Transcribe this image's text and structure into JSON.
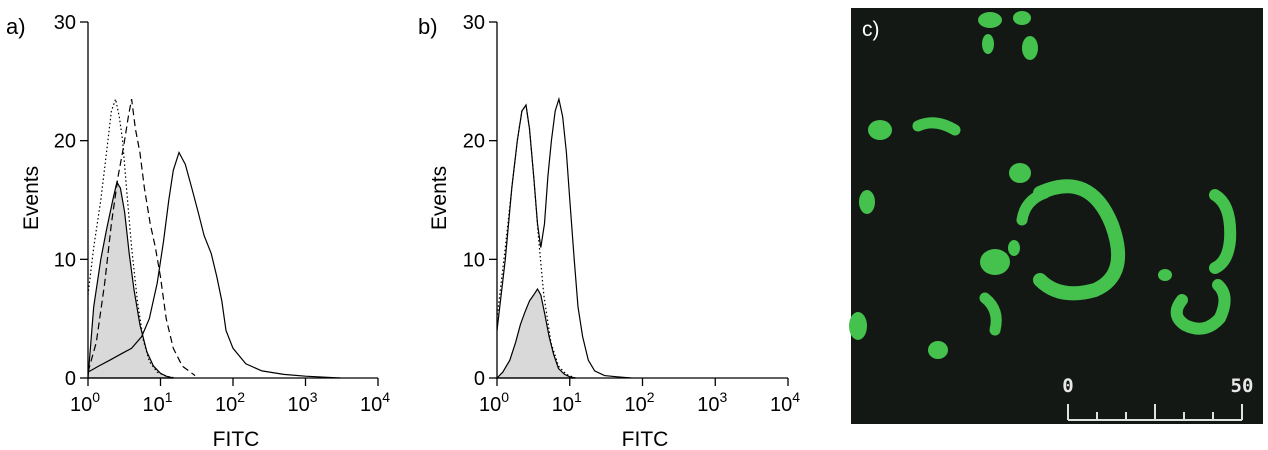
{
  "chart_data": [
    {
      "panel": "a)",
      "type": "area",
      "xlabel": "FITC",
      "ylabel": "Events",
      "xscale": "log",
      "xlim": [
        1,
        10000
      ],
      "ylim": [
        0,
        30
      ],
      "x_ticks": [
        1,
        10,
        100,
        1000,
        10000
      ],
      "x_tick_labels": [
        {
          "base": "10",
          "exp": "0"
        },
        {
          "base": "10",
          "exp": "1"
        },
        {
          "base": "10",
          "exp": "2"
        },
        {
          "base": "10",
          "exp": "3"
        },
        {
          "base": "10",
          "exp": "4"
        }
      ],
      "y_ticks": [
        0,
        10,
        20,
        30
      ],
      "y_tick_labels": [
        "0",
        "10",
        "20",
        "30"
      ],
      "grid": false,
      "series": [
        {
          "style": "filled",
          "x": [
            1,
            1.2,
            1.5,
            1.8,
            2.2,
            2.5,
            2.8,
            3.2,
            3.7,
            4.3,
            5.2,
            6.5,
            8,
            10,
            12,
            15
          ],
          "y": [
            0,
            6,
            10,
            12.5,
            15,
            16.5,
            16,
            14,
            10.5,
            7.5,
            4.5,
            2.2,
            1,
            0.4,
            0.15,
            0
          ]
        },
        {
          "style": "dotted",
          "x": [
            1,
            1.2,
            1.5,
            1.8,
            2.1,
            2.4,
            2.7,
            3.0,
            3.4,
            4.0,
            4.8,
            5.8,
            7,
            9,
            12,
            16
          ],
          "y": [
            7,
            11,
            15,
            19,
            22.5,
            23.5,
            22,
            20,
            16,
            11,
            6.5,
            3.2,
            1.4,
            0.5,
            0.15,
            0
          ]
        },
        {
          "style": "dashed",
          "x": [
            1,
            1.3,
            1.7,
            2.1,
            2.6,
            3.1,
            3.6,
            4.0,
            4.5,
            5.2,
            6.0,
            7.2,
            8.5,
            10,
            12,
            15,
            20,
            30
          ],
          "y": [
            0.5,
            3,
            8,
            13,
            17,
            19.5,
            22,
            23.5,
            21,
            19,
            16,
            13,
            11,
            8.5,
            5,
            2.5,
            1,
            0.2
          ]
        },
        {
          "style": "solid",
          "x": [
            1,
            1.4,
            2,
            2.8,
            4,
            5.5,
            7,
            9,
            11,
            13,
            15,
            18,
            22,
            27,
            33,
            40,
            50,
            60,
            70,
            80,
            100,
            150,
            250,
            500,
            1000,
            3000
          ],
          "y": [
            0.5,
            1,
            1.5,
            2,
            2.5,
            3.5,
            5,
            8,
            11.5,
            15,
            17.5,
            19,
            18,
            16,
            14,
            12,
            10.5,
            8.5,
            6.5,
            4,
            2.5,
            1.2,
            0.6,
            0.3,
            0.15,
            0
          ]
        }
      ]
    },
    {
      "panel": "b)",
      "type": "area",
      "xlabel": "FITC",
      "ylabel": "Events",
      "xscale": "log",
      "xlim": [
        1,
        10000
      ],
      "ylim": [
        0,
        30
      ],
      "x_ticks": [
        1,
        10,
        100,
        1000,
        10000
      ],
      "x_tick_labels": [
        {
          "base": "10",
          "exp": "0"
        },
        {
          "base": "10",
          "exp": "1"
        },
        {
          "base": "10",
          "exp": "2"
        },
        {
          "base": "10",
          "exp": "3"
        },
        {
          "base": "10",
          "exp": "4"
        }
      ],
      "y_ticks": [
        0,
        10,
        20,
        30
      ],
      "y_tick_labels": [
        "0",
        "10",
        "20",
        "30"
      ],
      "grid": false,
      "series": [
        {
          "style": "filled",
          "x": [
            1,
            1.2,
            1.5,
            1.8,
            2.1,
            2.4,
            2.8,
            3.2,
            3.6,
            4.0,
            4.5,
            5.2,
            6.0,
            7.0,
            8.5,
            10,
            12
          ],
          "y": [
            0,
            0.5,
            1.5,
            3,
            4.5,
            5.5,
            6.5,
            7,
            7.5,
            7,
            5.5,
            3.5,
            2,
            0.8,
            0.3,
            0.1,
            0
          ]
        },
        {
          "style": "dotted",
          "x": [
            1,
            1.3,
            1.6,
            1.9,
            2.2,
            2.5,
            2.8,
            3.2,
            3.7,
            4.4,
            5.5,
            7,
            9,
            12
          ],
          "y": [
            5,
            11,
            16,
            20,
            22.5,
            23,
            21,
            17,
            12,
            7,
            3,
            1,
            0.3,
            0
          ]
        },
        {
          "style": "solid",
          "x": [
            1,
            1.3,
            1.6,
            1.9,
            2.2,
            2.5,
            2.8,
            3.2,
            3.6,
            4.0,
            4.5,
            5.0,
            5.6,
            6.3,
            7.1,
            8,
            9,
            10,
            11.5,
            13,
            15,
            18,
            22,
            30,
            45,
            70
          ],
          "y": [
            4,
            10,
            16,
            20,
            22.5,
            23,
            21,
            17,
            13,
            11,
            13,
            17,
            20,
            22.5,
            23.5,
            22,
            19,
            15,
            10,
            6,
            3.5,
            1.5,
            0.6,
            0.2,
            0.1,
            0
          ]
        }
      ]
    }
  ],
  "micrograph": {
    "panel": "c)",
    "scale_start": "0",
    "scale_end": "50"
  }
}
